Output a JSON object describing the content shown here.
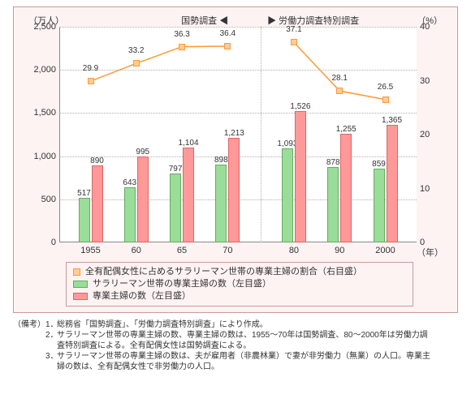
{
  "chart": {
    "unit_left": "（万人）",
    "unit_right": "（%）",
    "x_unit": "（年）",
    "top_left_label": "国勢調査",
    "top_right_label": "労働力調査特別調査",
    "arrow_left": "◀",
    "arrow_right": "▶",
    "left_axis": {
      "min": 0,
      "max": 2500,
      "step": 500
    },
    "right_axis": {
      "min": 0,
      "max": 40,
      "step": 10
    },
    "x_categories": [
      "1955",
      "60",
      "65",
      "70",
      "80",
      "90",
      "2000"
    ],
    "group_gap_after_index": 3,
    "series_bar1": {
      "label": "サラリーマン世帯の専業主婦の数（左目盛）",
      "color_fill": "#99dd99",
      "color_border": "#66aa66",
      "values": [
        517,
        643,
        797,
        898,
        1093,
        878,
        859
      ]
    },
    "series_bar2": {
      "label": "専業主婦の数（左目盛）",
      "color_fill": "#ff9999",
      "color_border": "#dd6666",
      "values": [
        890,
        995,
        1104,
        1213,
        1526,
        1255,
        1365
      ]
    },
    "series_line": {
      "label": "全有配偶女性に占めるサラリーマン世帯の専業主婦の割合（右目盛）",
      "color": "#ff9933",
      "marker_fill": "#ffcc99",
      "values": [
        29.9,
        33.2,
        36.3,
        36.4,
        37.1,
        28.1,
        26.5
      ]
    }
  },
  "notes": {
    "lead": "（備考）",
    "items": [
      "総務省「国勢調査」、「労働力調査特別調査」により作成。",
      "サラリーマン世帯の専業主婦の数、専業主婦の数は、1955～70年は国勢調査、80～2000年は労働力調査特別調査による。全有配偶女性は国勢調査による。",
      "サラリーマン世帯の専業主婦の数は、夫が雇用者（非農林業）で妻が非労働力（無業）の人口。専業主婦の数は、全有配偶女性で非労働力の人口。"
    ]
  }
}
